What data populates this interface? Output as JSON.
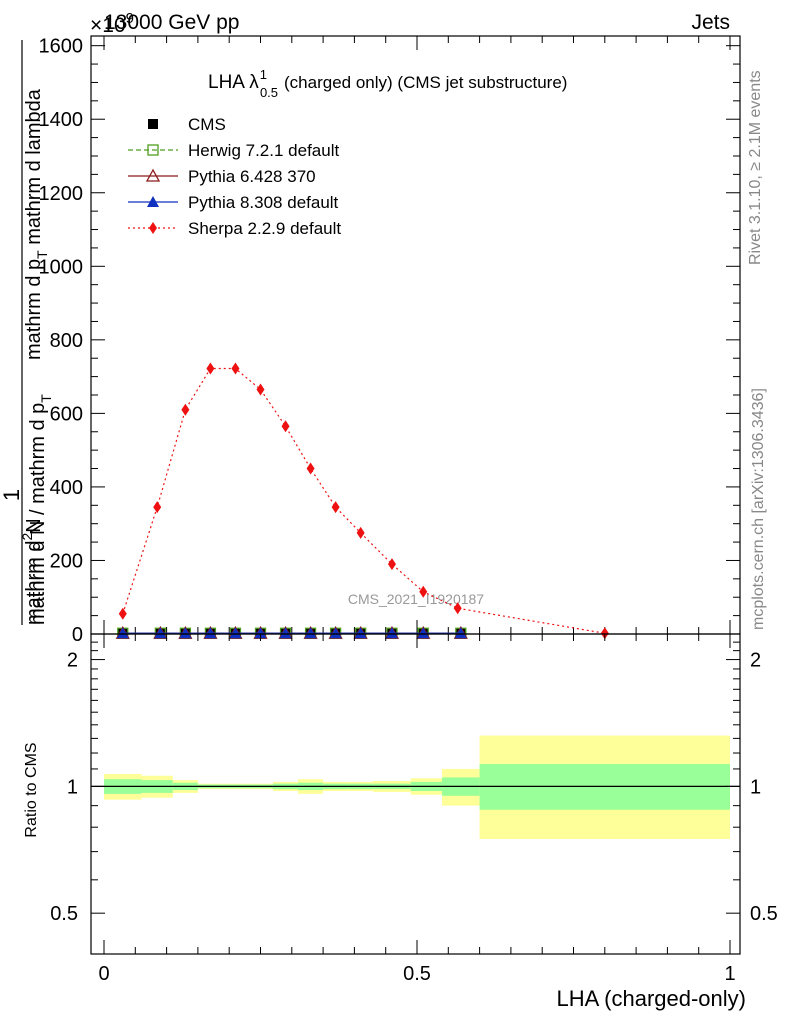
{
  "header": {
    "left": "13000 GeV pp",
    "right": "Jets",
    "exponent": "×10",
    "exponent_power": "9"
  },
  "side_texts": {
    "rivet": "Rivet 3.1.10, ≥ 2.1M events",
    "mcplots": "mcplots.cern.ch [arXiv:1306.3436]"
  },
  "watermark": "CMS_2021_I1920187",
  "chart_data": [
    {
      "type": "line",
      "title_main": "LHA λ",
      "title_sup": "1",
      "title_sub": "0.5",
      "title_rest": "(charged only) (CMS jet substructure)",
      "ylabel_prefix": "1",
      "ylabel_num": "mathrm d",
      "ylabel_sup": "2",
      "ylabel_num2": "N",
      "ylabel_num_rest": "mathrm d p",
      "ylabel_sub1": "T",
      "ylabel_num_rest2": " mathrm d lambda",
      "ylabel_den": "mathrm d N / mathrm d p",
      "ylabel_den_sub": "T",
      "ylim": [
        0,
        1600
      ],
      "yticks": [
        0,
        200,
        400,
        600,
        800,
        1000,
        1200,
        1400,
        1600
      ],
      "xlim": [
        0,
        1
      ],
      "legend_placement": "top-left",
      "series": [
        {
          "name": "CMS",
          "color": "#000000",
          "marker": "filled-square",
          "x": [
            0.03,
            0.09,
            0.13,
            0.17,
            0.21,
            0.25,
            0.29,
            0.33,
            0.37,
            0.41,
            0.46,
            0.51,
            0.57
          ],
          "y": [
            2,
            2,
            2,
            2,
            2,
            2,
            2,
            2,
            2,
            2,
            2,
            2,
            2
          ]
        },
        {
          "name": "Herwig 7.2.1 default",
          "color": "#4f9f1f",
          "marker": "open-square",
          "line": "dashed",
          "x": [
            0.03,
            0.09,
            0.13,
            0.17,
            0.21,
            0.25,
            0.29,
            0.33,
            0.37,
            0.41,
            0.46,
            0.51,
            0.57
          ],
          "y": [
            2,
            2,
            2,
            2,
            2,
            2,
            2,
            2,
            2,
            2,
            2,
            2,
            2
          ]
        },
        {
          "name": "Pythia 6.428 370",
          "color": "#8b1a1a",
          "marker": "open-triangle",
          "line": "solid",
          "x": [
            0.03,
            0.09,
            0.13,
            0.17,
            0.21,
            0.25,
            0.29,
            0.33,
            0.37,
            0.41,
            0.46,
            0.51,
            0.57
          ],
          "y": [
            2,
            2,
            2,
            2,
            2,
            2,
            2,
            2,
            2,
            2,
            2,
            2,
            2
          ]
        },
        {
          "name": "Pythia 8.308 default",
          "color": "#1030c0",
          "marker": "filled-triangle",
          "line": "solid",
          "x": [
            0.03,
            0.09,
            0.13,
            0.17,
            0.21,
            0.25,
            0.29,
            0.33,
            0.37,
            0.41,
            0.46,
            0.51,
            0.57
          ],
          "y": [
            2,
            2,
            2,
            2,
            2,
            2,
            2,
            2,
            2,
            2,
            2,
            2,
            2
          ]
        },
        {
          "name": "Sherpa 2.2.9 default",
          "color": "#ee1111",
          "marker": "filled-diamond",
          "line": "dotted",
          "x": [
            0.03,
            0.085,
            0.13,
            0.17,
            0.21,
            0.25,
            0.29,
            0.33,
            0.37,
            0.41,
            0.46,
            0.51,
            0.565,
            0.8
          ],
          "y": [
            55,
            345,
            610,
            722,
            722,
            665,
            565,
            450,
            345,
            275,
            190,
            115,
            70,
            2
          ]
        }
      ]
    },
    {
      "type": "area",
      "ylabel": "Ratio to CMS",
      "xlabel": "LHA (charged-only)",
      "ylim": [
        0.4,
        2.3
      ],
      "yscale": "log",
      "yticks": [
        0.5,
        1,
        2
      ],
      "ytick_labels": [
        "0.5",
        "1",
        "2"
      ],
      "xlim": [
        0,
        1
      ],
      "xticks": [
        0,
        0.5,
        1
      ],
      "xtick_labels": [
        "0",
        "0.5",
        "1"
      ],
      "reference": 1,
      "bands": [
        {
          "x0": 0.0,
          "x1": 0.06,
          "inner": [
            0.96,
            1.04
          ],
          "outer": [
            0.93,
            1.07
          ]
        },
        {
          "x0": 0.06,
          "x1": 0.11,
          "inner": [
            0.965,
            1.035
          ],
          "outer": [
            0.94,
            1.06
          ]
        },
        {
          "x0": 0.11,
          "x1": 0.15,
          "inner": [
            0.98,
            1.02
          ],
          "outer": [
            0.965,
            1.035
          ]
        },
        {
          "x0": 0.15,
          "x1": 0.19,
          "inner": [
            0.99,
            1.01
          ],
          "outer": [
            0.985,
            1.015
          ]
        },
        {
          "x0": 0.19,
          "x1": 0.23,
          "inner": [
            0.99,
            1.01
          ],
          "outer": [
            0.985,
            1.015
          ]
        },
        {
          "x0": 0.23,
          "x1": 0.27,
          "inner": [
            0.99,
            1.01
          ],
          "outer": [
            0.985,
            1.015
          ]
        },
        {
          "x0": 0.27,
          "x1": 0.31,
          "inner": [
            0.985,
            1.015
          ],
          "outer": [
            0.975,
            1.025
          ]
        },
        {
          "x0": 0.31,
          "x1": 0.35,
          "inner": [
            0.98,
            1.02
          ],
          "outer": [
            0.96,
            1.04
          ]
        },
        {
          "x0": 0.35,
          "x1": 0.39,
          "inner": [
            0.985,
            1.015
          ],
          "outer": [
            0.975,
            1.025
          ]
        },
        {
          "x0": 0.39,
          "x1": 0.43,
          "inner": [
            0.985,
            1.015
          ],
          "outer": [
            0.975,
            1.025
          ]
        },
        {
          "x0": 0.43,
          "x1": 0.49,
          "inner": [
            0.985,
            1.015
          ],
          "outer": [
            0.97,
            1.03
          ]
        },
        {
          "x0": 0.49,
          "x1": 0.54,
          "inner": [
            0.975,
            1.025
          ],
          "outer": [
            0.955,
            1.045
          ]
        },
        {
          "x0": 0.54,
          "x1": 0.6,
          "inner": [
            0.95,
            1.05
          ],
          "outer": [
            0.9,
            1.1
          ]
        },
        {
          "x0": 0.6,
          "x1": 1.0,
          "inner": [
            0.88,
            1.13
          ],
          "outer": [
            0.75,
            1.32
          ]
        }
      ]
    }
  ]
}
